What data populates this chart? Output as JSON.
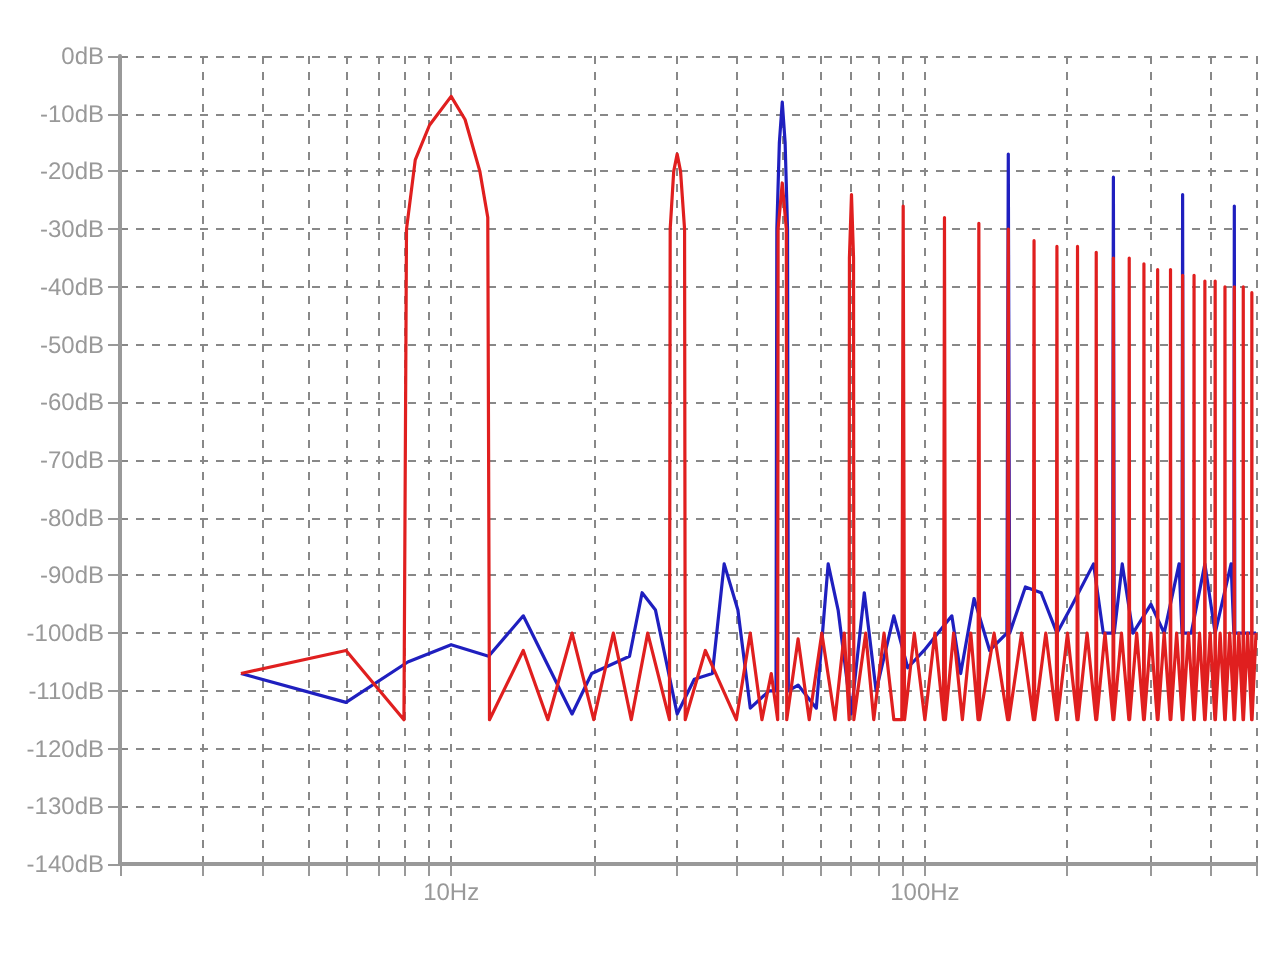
{
  "chart_data": {
    "type": "line",
    "log": "x",
    "grid": true,
    "marker": "none",
    "xlim": [
      2,
      500
    ],
    "xticks": [
      {
        "value": 2,
        "label": null
      },
      {
        "value": 3,
        "label": null
      },
      {
        "value": 4,
        "label": null
      },
      {
        "value": 5,
        "label": null
      },
      {
        "value": 6,
        "label": null
      },
      {
        "value": 7,
        "label": null
      },
      {
        "value": 8,
        "label": null
      },
      {
        "value": 9,
        "label": null
      },
      {
        "value": 10,
        "label": "10Hz"
      },
      {
        "value": 20,
        "label": null
      },
      {
        "value": 30,
        "label": null
      },
      {
        "value": 40,
        "label": null
      },
      {
        "value": 50,
        "label": null
      },
      {
        "value": 60,
        "label": null
      },
      {
        "value": 70,
        "label": null
      },
      {
        "value": 80,
        "label": null
      },
      {
        "value": 90,
        "label": null
      },
      {
        "value": 100,
        "label": "100Hz"
      },
      {
        "value": 200,
        "label": null
      },
      {
        "value": 300,
        "label": null
      },
      {
        "value": 400,
        "label": null
      },
      {
        "value": 500,
        "label": null
      }
    ],
    "ylim": [
      -140,
      0
    ],
    "yticks": [
      {
        "value": 0,
        "label": "0dB"
      },
      {
        "value": -10,
        "label": "-10dB"
      },
      {
        "value": -20,
        "label": "-20dB"
      },
      {
        "value": -30,
        "label": "-30dB"
      },
      {
        "value": -40,
        "label": "-40dB"
      },
      {
        "value": -50,
        "label": "-50dB"
      },
      {
        "value": -60,
        "label": "-60dB"
      },
      {
        "value": -70,
        "label": "-70dB"
      },
      {
        "value": -80,
        "label": "-80dB"
      },
      {
        "value": -90,
        "label": "-90dB"
      },
      {
        "value": -100,
        "label": "-100dB"
      },
      {
        "value": -110,
        "label": "-110dB"
      },
      {
        "value": -120,
        "label": "-120dB"
      },
      {
        "value": -130,
        "label": "-130dB"
      },
      {
        "value": -140,
        "label": "-140dB"
      }
    ],
    "series": [
      {
        "color": "#1f1fbf",
        "x": [
          3.6,
          6,
          8.1,
          10,
          12,
          14.2,
          18,
          19.8,
          23.8,
          25.3,
          27,
          30,
          32.6,
          35.6,
          37.7,
          40.3,
          42.8,
          46.9,
          48.5,
          48.7,
          49.3,
          50,
          50.7,
          51.3,
          51.5,
          54,
          59,
          62.5,
          65.6,
          69.9,
          74.5,
          78.9,
          86,
          92,
          99.6,
          114,
          119,
          127,
          137,
          149,
          150,
          151,
          163,
          176,
          190,
          205,
          227,
          238,
          249,
          250,
          251,
          261,
          275,
          300,
          320,
          344,
          349,
          350,
          351,
          365,
          390,
          410,
          443,
          449,
          450,
          451,
          470,
          500
        ],
        "values": [
          -107,
          -112,
          -105,
          -102,
          -104,
          -97,
          -114,
          -107,
          -104,
          -93,
          -96,
          -114,
          -108,
          -107,
          -88,
          -96,
          -113,
          -110,
          -110,
          -30,
          -15,
          -8,
          -15,
          -30,
          -110,
          -109,
          -113,
          -88,
          -96,
          -114,
          -93,
          -110,
          -97,
          -106,
          -103,
          -97,
          -107,
          -94,
          -103,
          -100,
          -17,
          -100,
          -92,
          -93,
          -100,
          -95,
          -88,
          -100,
          -100,
          -21,
          -100,
          -88,
          -100,
          -95,
          -100,
          -88,
          -100,
          -24,
          -100,
          -100,
          -88,
          -100,
          -88,
          -100,
          -26,
          -100,
          -100,
          -100
        ]
      },
      {
        "color": "#e01f1f",
        "x": [
          3.6,
          6,
          7.95,
          8.05,
          8.4,
          9,
          10,
          10.7,
          11.5,
          11.95,
          12.05,
          14.2,
          16,
          18,
          20,
          22,
          24,
          26,
          28.9,
          29,
          29.5,
          30,
          30.5,
          31.1,
          31.2,
          34.4,
          40,
          42.8,
          45.3,
          47.4,
          48.9,
          49,
          50,
          51,
          51.1,
          54,
          57,
          60.6,
          64.6,
          67.6,
          69.2,
          69.3,
          70,
          70.7,
          70.8,
          75,
          78,
          82,
          86,
          89.4,
          90,
          90.6,
          95,
          100,
          105,
          109.5,
          110,
          110.5,
          115,
          120,
          125,
          129.5,
          130,
          130.5,
          140,
          149.5,
          150,
          150.5,
          160,
          169.5,
          170,
          170.5,
          180,
          189.5,
          190,
          190.5,
          200,
          209.5,
          210,
          210.5,
          220,
          229.5,
          230,
          230.5,
          240,
          249.5,
          250,
          250.5,
          260,
          269.5,
          270,
          270.5,
          280,
          289.5,
          290,
          290.5,
          300,
          309.5,
          310,
          310.5,
          320,
          329.5,
          330,
          330.5,
          340,
          349.5,
          350,
          350.5,
          360,
          369.5,
          370,
          370.5,
          380,
          389.5,
          390,
          390.5,
          400,
          409.5,
          410,
          410.5,
          420,
          429.5,
          430,
          430.5,
          440,
          449.5,
          450,
          450.5,
          460,
          469.5,
          470,
          470.5,
          480,
          489.5,
          490,
          490.5,
          500
        ],
        "values": [
          -107,
          -103,
          -115,
          -30,
          -18,
          -12,
          -7,
          -11,
          -20,
          -28,
          -115,
          -103,
          -115,
          -100,
          -115,
          -100,
          -115,
          -100,
          -115,
          -30,
          -20,
          -17,
          -20,
          -30,
          -115,
          -103,
          -115,
          -100,
          -115,
          -107,
          -115,
          -30,
          -22,
          -30,
          -115,
          -101,
          -115,
          -100,
          -115,
          -100,
          -115,
          -35,
          -24,
          -35,
          -115,
          -100,
          -115,
          -100,
          -115,
          -115,
          -26,
          -115,
          -100,
          -115,
          -100,
          -115,
          -28,
          -115,
          -100,
          -115,
          -100,
          -115,
          -29,
          -115,
          -100,
          -115,
          -30,
          -115,
          -100,
          -115,
          -32,
          -115,
          -100,
          -115,
          -33,
          -115,
          -100,
          -115,
          -33,
          -115,
          -100,
          -115,
          -34,
          -115,
          -100,
          -115,
          -35,
          -115,
          -100,
          -115,
          -35,
          -115,
          -100,
          -115,
          -36,
          -115,
          -100,
          -115,
          -37,
          -115,
          -100,
          -115,
          -37,
          -115,
          -100,
          -115,
          -38,
          -115,
          -100,
          -115,
          -38,
          -115,
          -100,
          -115,
          -39,
          -115,
          -100,
          -115,
          -39,
          -115,
          -100,
          -115,
          -40,
          -115,
          -100,
          -115,
          -40,
          -115,
          -100,
          -115,
          -40,
          -115,
          -100,
          -115,
          -41,
          -115,
          -100
        ]
      }
    ]
  }
}
